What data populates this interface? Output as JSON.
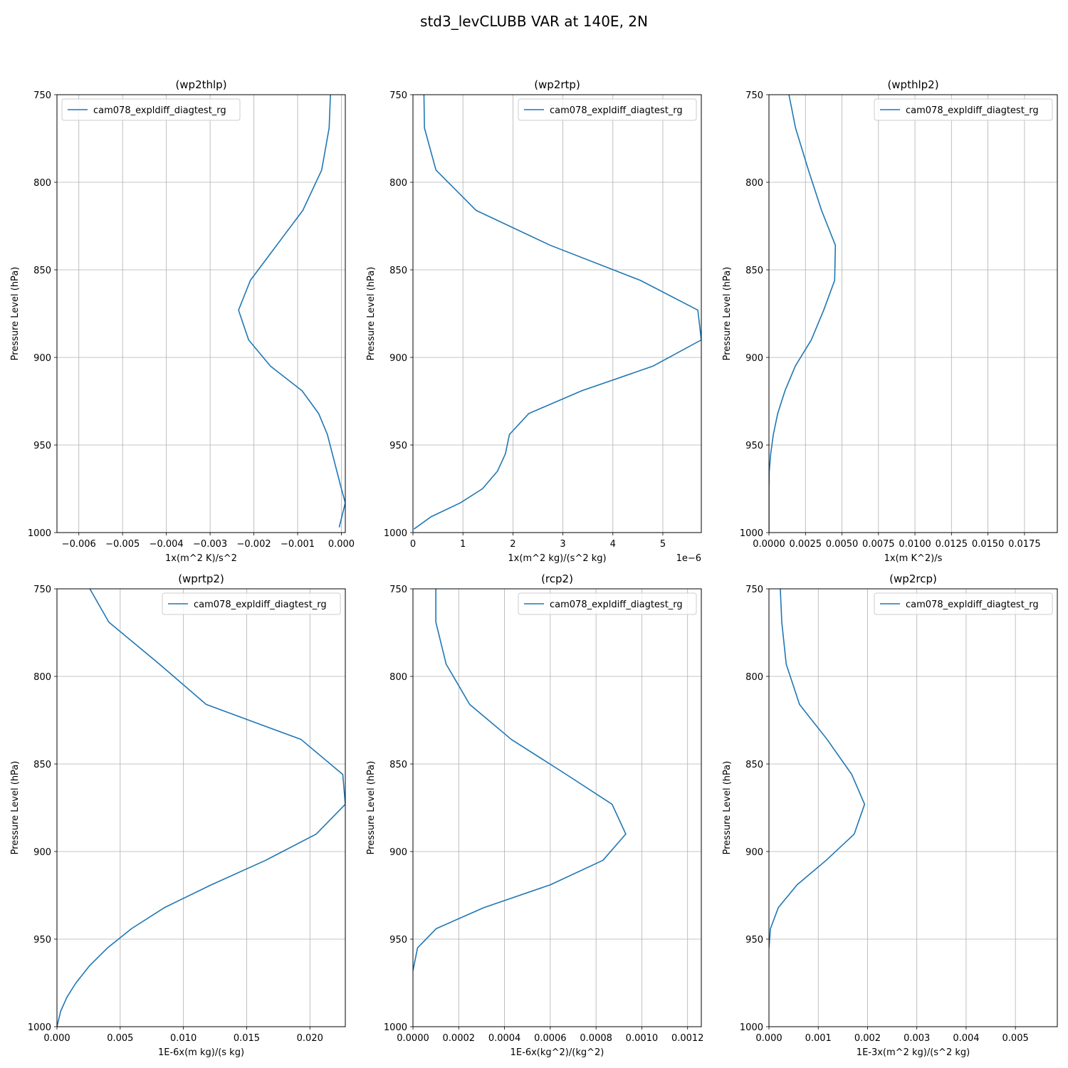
{
  "figure": {
    "title": "std3_levCLUBB VAR at 140E, 2N"
  },
  "chart_data": [
    {
      "type": "line",
      "title": "(wp2thlp)",
      "xlabel": "1x(m^2 K)/s^2",
      "ylabel": "Pressure Level (hPa)",
      "xlim": [
        -0.0065,
        9e-05
      ],
      "ylim": [
        1000,
        750
      ],
      "x_ticks": [
        -0.006,
        -0.005,
        -0.004,
        -0.003,
        -0.002,
        -0.001,
        0.0
      ],
      "x_tick_labels": [
        "−0.006",
        "−0.005",
        "−0.004",
        "−0.003",
        "−0.002",
        "−0.001",
        "0.000"
      ],
      "x_offset_text": "",
      "y_ticks": [
        750,
        800,
        850,
        900,
        950,
        1000
      ],
      "grid": true,
      "legend_position": "upper-left",
      "series": [
        {
          "name": "cam078_expldiff_diagtest_rg",
          "color": "#1f77b4",
          "x": [
            -0.00025,
            -0.00028,
            -0.00045,
            -0.00088,
            -0.00208,
            -0.00235,
            -0.00212,
            -0.00162,
            -0.0009,
            -0.00052,
            -0.00032,
            0.0,
            9e-05,
            -5e-05
          ],
          "y": [
            750,
            769,
            793,
            816,
            856,
            873,
            890,
            905,
            919,
            932,
            944,
            975,
            983,
            997
          ]
        }
      ]
    },
    {
      "type": "line",
      "title": "(wp2rtp)",
      "xlabel": "1x(m^2 kg)/(s^2 kg)",
      "ylabel": "Pressure Level (hPa)",
      "xlim": [
        0,
        5.77
      ],
      "ylim": [
        1000,
        750
      ],
      "x_ticks": [
        0,
        1,
        2,
        3,
        4,
        5
      ],
      "x_tick_labels": [
        "0",
        "1",
        "2",
        "3",
        "4",
        "5"
      ],
      "x_offset_text": "1e−6",
      "y_ticks": [
        750,
        800,
        850,
        900,
        950,
        1000
      ],
      "grid": true,
      "legend_position": "upper-right",
      "series": [
        {
          "name": "cam078_expldiff_diagtest_rg",
          "color": "#1f77b4",
          "x": [
            0.22,
            0.23,
            0.46,
            1.26,
            2.75,
            4.55,
            5.7,
            5.77,
            4.8,
            3.38,
            2.32,
            1.93,
            1.85,
            1.69,
            1.39,
            0.95,
            0.36,
            0.02
          ],
          "y": [
            750,
            769,
            793,
            816,
            836,
            856,
            873,
            890,
            905,
            919,
            932,
            944,
            955,
            965,
            975,
            983,
            991,
            998
          ]
        }
      ]
    },
    {
      "type": "line",
      "title": "(wpthlp2)",
      "xlabel": "1x(m K^2)/s",
      "ylabel": "Pressure Level (hPa)",
      "xlim": [
        0,
        0.01975
      ],
      "ylim": [
        1000,
        750
      ],
      "x_ticks": [
        0.0,
        0.0025,
        0.005,
        0.0075,
        0.01,
        0.0125,
        0.015,
        0.0175
      ],
      "x_tick_labels": [
        "0.0000",
        "0.0025",
        "0.0050",
        "0.0075",
        "0.0100",
        "0.0125",
        "0.0150",
        "0.0175"
      ],
      "x_offset_text": "",
      "y_ticks": [
        750,
        800,
        850,
        900,
        950,
        1000
      ],
      "grid": true,
      "legend_position": "upper-right",
      "series": [
        {
          "name": "cam078_expldiff_diagtest_rg",
          "color": "#1f77b4",
          "x": [
            0.00137,
            0.00182,
            0.0027,
            0.0036,
            0.00455,
            0.0045,
            0.00375,
            0.0029,
            0.0018,
            0.0011,
            0.0006,
            0.0003,
            0.00012,
            2e-05,
            0.0,
            0.0
          ],
          "y": [
            750,
            769,
            793,
            816,
            836,
            856,
            873,
            890,
            905,
            919,
            932,
            944,
            955,
            965,
            975,
            1000
          ]
        }
      ]
    },
    {
      "type": "line",
      "title": "(wprtp2)",
      "xlabel": "1E-6x(m kg)/(s kg)",
      "ylabel": "Pressure Level (hPa)",
      "xlim": [
        0,
        0.0228
      ],
      "ylim": [
        1000,
        750
      ],
      "x_ticks": [
        0.0,
        0.005,
        0.01,
        0.015,
        0.02
      ],
      "x_tick_labels": [
        "0.000",
        "0.005",
        "0.010",
        "0.015",
        "0.020"
      ],
      "x_offset_text": "",
      "y_ticks": [
        750,
        800,
        850,
        900,
        950,
        1000
      ],
      "grid": true,
      "legend_position": "upper-right",
      "series": [
        {
          "name": "cam078_expldiff_diagtest_rg",
          "color": "#1f77b4",
          "x": [
            0.0026,
            0.0041,
            0.0081,
            0.0118,
            0.0193,
            0.0226,
            0.0228,
            0.0205,
            0.0165,
            0.0122,
            0.0085,
            0.0059,
            0.004,
            0.0026,
            0.0015,
            0.0008,
            0.0003,
            0.0
          ],
          "y": [
            750,
            769,
            793,
            816,
            836,
            856,
            873,
            890,
            905,
            919,
            932,
            944,
            955,
            965,
            975,
            983,
            991,
            1000
          ]
        }
      ]
    },
    {
      "type": "line",
      "title": "(rcp2)",
      "xlabel": "1E-6x(kg^2)/(kg^2)",
      "ylabel": "Pressure Level (hPa)",
      "xlim": [
        0,
        0.00126
      ],
      "ylim": [
        1000,
        750
      ],
      "x_ticks": [
        0.0,
        0.0002,
        0.0004,
        0.0006,
        0.0008,
        0.001,
        0.0012
      ],
      "x_tick_labels": [
        "0.0000",
        "0.0002",
        "0.0004",
        "0.0006",
        "0.0008",
        "0.0010",
        "0.0012"
      ],
      "x_offset_text": "",
      "y_ticks": [
        750,
        800,
        850,
        900,
        950,
        1000
      ],
      "grid": true,
      "legend_position": "upper-right",
      "series": [
        {
          "name": "cam078_expldiff_diagtest_rg",
          "color": "#1f77b4",
          "x": [
            0.0001,
            0.0001,
            0.000145,
            0.000248,
            0.00043,
            0.00067,
            0.00087,
            0.00093,
            0.00083,
            0.0006,
            0.00031,
            0.000102,
            2e-05,
            0.0
          ],
          "y": [
            750,
            769,
            793,
            816,
            836,
            856,
            873,
            890,
            905,
            919,
            932,
            944,
            955,
            968
          ]
        }
      ]
    },
    {
      "type": "line",
      "title": "(wp2rcp)",
      "xlabel": "1E-3x(m^2 kg)/(s^2 kg)",
      "ylabel": "Pressure Level (hPa)",
      "xlim": [
        0,
        0.00585
      ],
      "ylim": [
        1000,
        750
      ],
      "x_ticks": [
        0.0,
        0.001,
        0.002,
        0.003,
        0.004,
        0.005
      ],
      "x_tick_labels": [
        "0.000",
        "0.001",
        "0.002",
        "0.003",
        "0.004",
        "0.005"
      ],
      "x_offset_text": "",
      "y_ticks": [
        750,
        800,
        850,
        900,
        950,
        1000
      ],
      "grid": true,
      "legend_position": "upper-right",
      "series": [
        {
          "name": "cam078_expldiff_diagtest_rg",
          "color": "#1f77b4",
          "x": [
            0.00023,
            0.00026,
            0.00035,
            0.00062,
            0.00118,
            0.00168,
            0.00194,
            0.00173,
            0.00116,
            0.00057,
            0.00019,
            3e-05,
            0.0
          ],
          "y": [
            750,
            769,
            793,
            816,
            836,
            856,
            873,
            890,
            905,
            919,
            932,
            944,
            955
          ]
        }
      ]
    }
  ]
}
